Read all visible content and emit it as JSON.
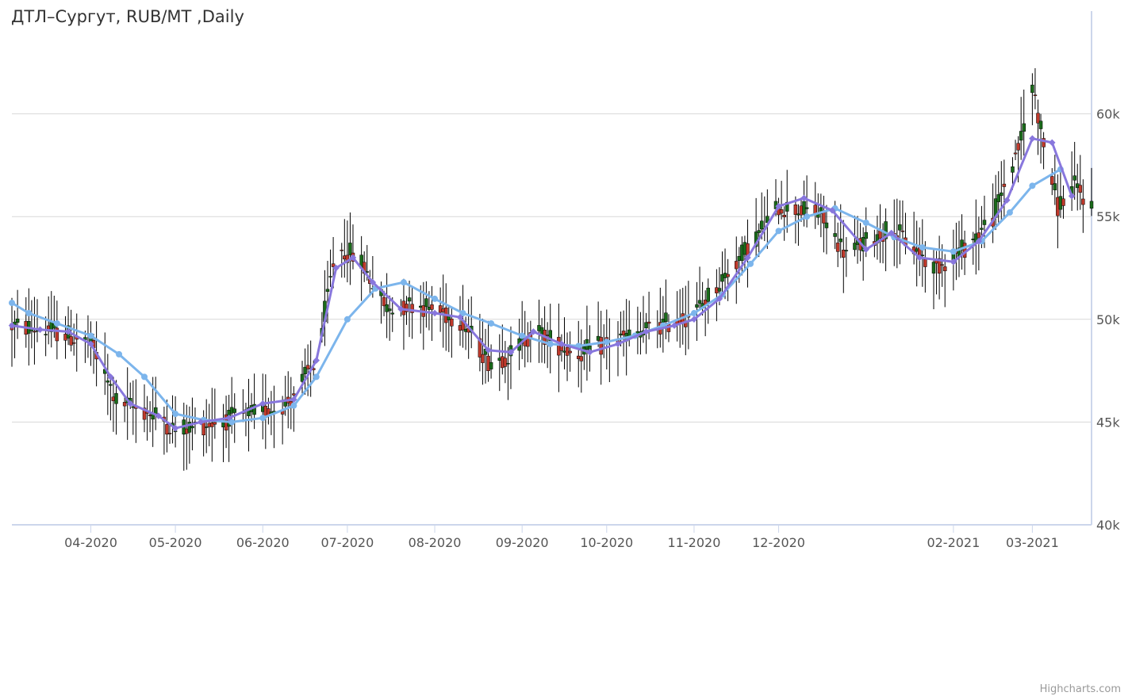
{
  "chart": {
    "title": "ДТЛ–Сургут, RUB/MT ,Daily",
    "credits": "Highcharts.com"
  },
  "chart_data": {
    "type": "candlestick",
    "title": "ДТЛ–Сургут, RUB/MT ,Daily",
    "xlabel": "",
    "ylabel": "",
    "ylim": [
      40000,
      65000
    ],
    "y_ticks": [
      40000,
      45000,
      50000,
      55000,
      60000
    ],
    "y_tick_labels": [
      "40k",
      "45k",
      "50k",
      "55k",
      "60k"
    ],
    "y_axis_position": "right",
    "x_range": [
      "2020-03-04",
      "2021-03-22"
    ],
    "x_ticks": [
      "2020-04-01",
      "2020-05-01",
      "2020-06-01",
      "2020-07-01",
      "2020-08-01",
      "2020-09-01",
      "2020-10-01",
      "2020-11-01",
      "2020-12-01",
      "2021-02-01",
      "2021-03-01"
    ],
    "x_tick_labels": [
      "04-2020",
      "05-2020",
      "06-2020",
      "07-2020",
      "08-2020",
      "09-2020",
      "10-2020",
      "11-2020",
      "12-2020",
      "02-2021",
      "03-2021"
    ],
    "grid": "horizontal",
    "legend": "none",
    "colors": {
      "up": "#1a6b1a",
      "down": "#c0392b",
      "wick": "#000000",
      "line_slow": "#7cb5ec",
      "line_fast": "#8877dd",
      "grid": "#d8d8d8",
      "axis": "#ccd6eb"
    },
    "price_path": [
      [
        "2020-03-04",
        49700
      ],
      [
        "2020-03-20",
        49400
      ],
      [
        "2020-04-01",
        48800
      ],
      [
        "2020-04-10",
        46000
      ],
      [
        "2020-04-25",
        45300
      ],
      [
        "2020-05-01",
        44600
      ],
      [
        "2020-05-15",
        45000
      ],
      [
        "2020-06-01",
        45500
      ],
      [
        "2020-06-10",
        46000
      ],
      [
        "2020-06-20",
        48000
      ],
      [
        "2020-06-27",
        53500
      ],
      [
        "2020-07-05",
        53000
      ],
      [
        "2020-07-15",
        50500
      ],
      [
        "2020-07-25",
        50800
      ],
      [
        "2020-08-10",
        50000
      ],
      [
        "2020-08-20",
        48000
      ],
      [
        "2020-08-28",
        48300
      ],
      [
        "2020-09-05",
        49500
      ],
      [
        "2020-09-20",
        48300
      ],
      [
        "2020-10-01",
        48800
      ],
      [
        "2020-10-20",
        49700
      ],
      [
        "2020-11-01",
        50300
      ],
      [
        "2020-11-20",
        53500
      ],
      [
        "2020-12-01",
        55500
      ],
      [
        "2020-12-15",
        55200
      ],
      [
        "2020-12-25",
        53200
      ],
      [
        "2021-01-10",
        54500
      ],
      [
        "2021-01-25",
        52500
      ],
      [
        "2021-02-05",
        53500
      ],
      [
        "2021-02-15",
        55000
      ],
      [
        "2021-02-25",
        58800
      ],
      [
        "2021-03-01",
        61500
      ],
      [
        "2021-03-05",
        58500
      ],
      [
        "2021-03-10",
        55500
      ],
      [
        "2021-03-16",
        56500
      ],
      [
        "2021-03-22",
        55500
      ]
    ],
    "series": [
      {
        "type": "line",
        "values": [
          [
            "2020-03-04",
            50800
          ],
          [
            "2020-03-10",
            50300
          ],
          [
            "2020-03-20",
            49800
          ],
          [
            "2020-04-01",
            49200
          ],
          [
            "2020-04-11",
            48300
          ],
          [
            "2020-04-20",
            47200
          ],
          [
            "2020-05-01",
            45400
          ],
          [
            "2020-05-11",
            45100
          ],
          [
            "2020-05-21",
            45000
          ],
          [
            "2020-06-01",
            45200
          ],
          [
            "2020-06-12",
            45800
          ],
          [
            "2020-06-20",
            47200
          ],
          [
            "2020-07-01",
            50000
          ],
          [
            "2020-07-11",
            51500
          ],
          [
            "2020-07-21",
            51800
          ],
          [
            "2020-08-01",
            51000
          ],
          [
            "2020-08-11",
            50300
          ],
          [
            "2020-08-21",
            49800
          ],
          [
            "2020-09-01",
            49200
          ],
          [
            "2020-09-11",
            48800
          ],
          [
            "2020-09-21",
            48700
          ],
          [
            "2020-10-01",
            48900
          ],
          [
            "2020-10-11",
            49200
          ],
          [
            "2020-10-21",
            49700
          ],
          [
            "2020-11-01",
            50300
          ],
          [
            "2020-11-11",
            51200
          ],
          [
            "2020-11-21",
            52700
          ],
          [
            "2020-12-01",
            54300
          ],
          [
            "2020-12-11",
            55000
          ],
          [
            "2020-12-21",
            55400
          ],
          [
            "2021-01-01",
            54700
          ],
          [
            "2021-01-11",
            54000
          ],
          [
            "2021-01-21",
            53500
          ],
          [
            "2021-02-01",
            53300
          ],
          [
            "2021-02-11",
            53800
          ],
          [
            "2021-02-21",
            55200
          ],
          [
            "2021-03-01",
            56500
          ],
          [
            "2021-03-11",
            57300
          ]
        ]
      },
      {
        "type": "line",
        "values": [
          [
            "2020-03-04",
            49700
          ],
          [
            "2020-03-14",
            49500
          ],
          [
            "2020-03-24",
            49400
          ],
          [
            "2020-04-01",
            48800
          ],
          [
            "2020-04-08",
            47200
          ],
          [
            "2020-04-15",
            45900
          ],
          [
            "2020-04-25",
            45300
          ],
          [
            "2020-05-01",
            44700
          ],
          [
            "2020-05-10",
            45000
          ],
          [
            "2020-05-20",
            45200
          ],
          [
            "2020-06-01",
            45900
          ],
          [
            "2020-06-12",
            46100
          ],
          [
            "2020-06-20",
            48000
          ],
          [
            "2020-06-27",
            52500
          ],
          [
            "2020-07-03",
            53000
          ],
          [
            "2020-07-10",
            51800
          ],
          [
            "2020-07-20",
            50500
          ],
          [
            "2020-08-01",
            50300
          ],
          [
            "2020-08-10",
            50100
          ],
          [
            "2020-08-20",
            48500
          ],
          [
            "2020-08-28",
            48400
          ],
          [
            "2020-09-05",
            49400
          ],
          [
            "2020-09-15",
            48800
          ],
          [
            "2020-09-25",
            48400
          ],
          [
            "2020-10-05",
            48800
          ],
          [
            "2020-10-15",
            49400
          ],
          [
            "2020-10-25",
            49700
          ],
          [
            "2020-11-01",
            50000
          ],
          [
            "2020-11-10",
            51000
          ],
          [
            "2020-11-20",
            53000
          ],
          [
            "2020-12-01",
            55500
          ],
          [
            "2020-12-10",
            55900
          ],
          [
            "2020-12-20",
            55300
          ],
          [
            "2021-01-01",
            53400
          ],
          [
            "2021-01-10",
            54200
          ],
          [
            "2021-01-20",
            53000
          ],
          [
            "2021-02-01",
            52800
          ],
          [
            "2021-02-10",
            53800
          ],
          [
            "2021-02-20",
            55800
          ],
          [
            "2021-03-01",
            58800
          ],
          [
            "2021-03-08",
            58600
          ],
          [
            "2021-03-15",
            56000
          ]
        ]
      }
    ]
  }
}
